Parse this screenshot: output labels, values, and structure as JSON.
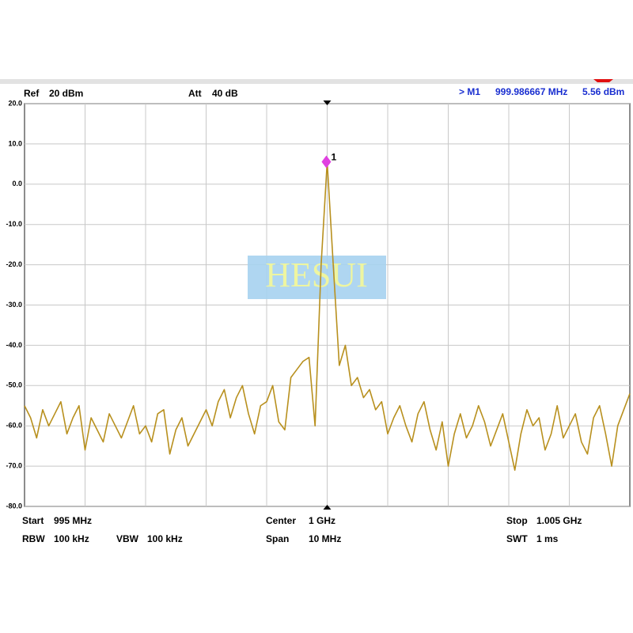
{
  "header": {
    "ref_label": "Ref",
    "ref_value": "20 dBm",
    "att_label": "Att",
    "att_value": "40 dB",
    "marker_label": "> M1",
    "marker_freq": "999.986667 MHz",
    "marker_level": "5.56 dBm"
  },
  "footer": {
    "start_label": "Start",
    "start_value": "995 MHz",
    "rbw_label": "RBW",
    "rbw_value": "100 kHz",
    "vbw_label": "VBW",
    "vbw_value": "100 kHz",
    "center_label": "Center",
    "center_value": "1 GHz",
    "span_label": "Span",
    "span_value": "10 MHz",
    "stop_label": "Stop",
    "stop_value": "1.005 GHz",
    "swt_label": "SWT",
    "swt_value": "1 ms"
  },
  "watermark": "HESUI",
  "chart_data": {
    "type": "line",
    "color": "#b8901e",
    "grid": true,
    "xlim": [
      995,
      1005
    ],
    "ylim": [
      -80,
      20
    ],
    "yticks": [
      {
        "value": 20,
        "label": "20.0"
      },
      {
        "value": 10,
        "label": "10.0"
      },
      {
        "value": 0,
        "label": "0.0"
      },
      {
        "value": -10,
        "label": "-10.0"
      },
      {
        "value": -20,
        "label": "-20.0"
      },
      {
        "value": -30,
        "label": "-30.0"
      },
      {
        "value": -40,
        "label": "-40.0"
      },
      {
        "value": -50,
        "label": "-50.0"
      },
      {
        "value": -60,
        "label": "-60.0"
      },
      {
        "value": -70,
        "label": "-70.0"
      },
      {
        "value": -80,
        "label": "-80.0"
      }
    ],
    "x": [
      995,
      995.1,
      995.2,
      995.3,
      995.4,
      995.5,
      995.6,
      995.7,
      995.8,
      995.9,
      996,
      996.1,
      996.2,
      996.3,
      996.4,
      996.5,
      996.6,
      996.7,
      996.8,
      996.9,
      997,
      997.1,
      997.2,
      997.3,
      997.4,
      997.5,
      997.6,
      997.7,
      997.8,
      997.9,
      998,
      998.1,
      998.2,
      998.3,
      998.4,
      998.5,
      998.6,
      998.7,
      998.8,
      998.9,
      999,
      999.1,
      999.2,
      999.3,
      999.4,
      999.5,
      999.6,
      999.7,
      999.8,
      999.9,
      1000,
      1000.1,
      1000.2,
      1000.3,
      1000.4,
      1000.5,
      1000.6,
      1000.7,
      1000.8,
      1000.9,
      1001,
      1001.1,
      1001.2,
      1001.3,
      1001.4,
      1001.5,
      1001.6,
      1001.7,
      1001.8,
      1001.9,
      1002,
      1002.1,
      1002.2,
      1002.3,
      1002.4,
      1002.5,
      1002.6,
      1002.7,
      1002.8,
      1002.9,
      1003,
      1003.1,
      1003.2,
      1003.3,
      1003.4,
      1003.5,
      1003.6,
      1003.7,
      1003.8,
      1003.9,
      1004,
      1004.1,
      1004.2,
      1004.3,
      1004.4,
      1004.5,
      1004.6,
      1004.7,
      1004.8,
      1004.9,
      1005
    ],
    "values": [
      -55,
      -58,
      -63,
      -56,
      -60,
      -57,
      -54,
      -62,
      -58,
      -55,
      -66,
      -58,
      -61,
      -64,
      -57,
      -60,
      -63,
      -59,
      -55,
      -62,
      -60,
      -64,
      -57,
      -56,
      -67,
      -61,
      -58,
      -65,
      -62,
      -59,
      -56,
      -60,
      -54,
      -51,
      -58,
      -53,
      -50,
      -57,
      -62,
      -55,
      -54,
      -50,
      -59,
      -61,
      -48,
      -46,
      -44,
      -43,
      -60,
      -20,
      5.56,
      -20,
      -45,
      -40,
      -50,
      -48,
      -53,
      -51,
      -56,
      -54,
      -62,
      -58,
      -55,
      -60,
      -64,
      -57,
      -54,
      -61,
      -66,
      -59,
      -70,
      -62,
      -57,
      -63,
      -60,
      -55,
      -59,
      -65,
      -61,
      -57,
      -64,
      -71,
      -62,
      -56,
      -60,
      -58,
      -66,
      -62,
      -55,
      -63,
      -60,
      -57,
      -64,
      -67,
      -58,
      -55,
      -62,
      -70,
      -60,
      -56,
      -52
    ],
    "marker": {
      "label": "1",
      "x": 999.986667,
      "value": 5.56,
      "color": "#e040e0"
    }
  }
}
